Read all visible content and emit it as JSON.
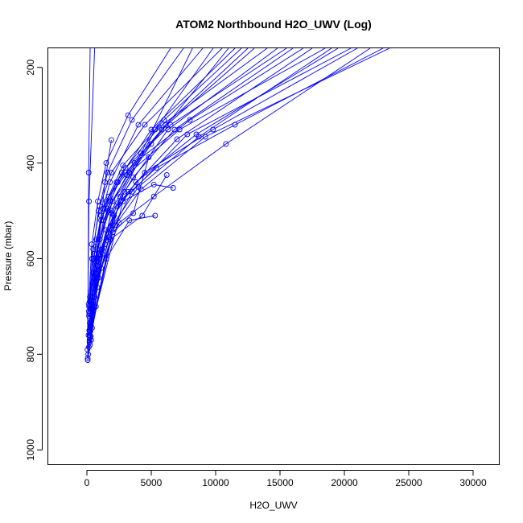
{
  "chart_data": {
    "type": "line",
    "title": "ATOM2 Northbound H2O_UWV (Log)",
    "xlabel": "H2O_UWV",
    "ylabel": "Pressure (mbar)",
    "xlim": [
      -3000,
      32000
    ],
    "ylim": [
      1030,
      160
    ],
    "y_reversed": true,
    "x_ticks": [
      0,
      5000,
      10000,
      15000,
      20000,
      25000,
      30000
    ],
    "y_ticks": [
      200,
      400,
      600,
      800,
      1000
    ],
    "grid": false,
    "legend": "none",
    "color": "#0000ff",
    "series": [
      {
        "x": [
          60,
          700,
          1800,
          2600,
          5300,
          9800
        ],
        "y": [
          812,
          700,
          560,
          470,
          330,
          160
        ]
      },
      {
        "x": [
          100,
          500,
          1200,
          1900,
          4200,
          8200
        ],
        "y": [
          800,
          690,
          590,
          500,
          380,
          160
        ]
      },
      {
        "x": [
          150,
          600,
          1400,
          2900,
          6300,
          14800
        ],
        "y": [
          785,
          680,
          570,
          460,
          330,
          160
        ]
      },
      {
        "x": [
          120,
          450,
          1000,
          2000,
          5000,
          11000
        ],
        "y": [
          760,
          650,
          560,
          480,
          360,
          160
        ]
      },
      {
        "x": [
          200,
          800,
          1700,
          3500,
          7800,
          20500
        ],
        "y": [
          775,
          660,
          555,
          460,
          340,
          160
        ]
      },
      {
        "x": [
          250,
          900,
          2200,
          4200,
          9200,
          23500
        ],
        "y": [
          765,
          640,
          530,
          455,
          345,
          160
        ]
      },
      {
        "x": [
          180,
          700,
          1500,
          3200,
          7000,
          17500
        ],
        "y": [
          750,
          630,
          540,
          460,
          350,
          160
        ]
      },
      {
        "x": [
          300,
          1100,
          2500,
          5200,
          10800,
          22000
        ],
        "y": [
          740,
          620,
          525,
          470,
          360,
          160
        ]
      },
      {
        "x": [
          220,
          600,
          1300,
          2400,
          5800,
          13000
        ],
        "y": [
          735,
          610,
          520,
          440,
          330,
          160
        ]
      },
      {
        "x": [
          160,
          520,
          1100,
          1800,
          4000,
          9000
        ],
        "y": [
          720,
          600,
          510,
          440,
          320,
          160
        ]
      },
      {
        "x": [
          350,
          1000,
          2100,
          3800,
          8500,
          19500
        ],
        "y": [
          730,
          600,
          510,
          440,
          340,
          160
        ]
      },
      {
        "x": [
          280,
          850,
          1900,
          3600,
          6800,
          16000
        ],
        "y": [
          745,
          615,
          505,
          430,
          330,
          160
        ]
      },
      {
        "x": [
          150,
          400,
          900,
          1600,
          3500,
          7500
        ],
        "y": [
          710,
          600,
          500,
          420,
          310,
          160
        ]
      },
      {
        "x": [
          240,
          780,
          1650,
          3100,
          6100,
          12500
        ],
        "y": [
          725,
          605,
          500,
          425,
          320,
          160
        ]
      },
      {
        "x": [
          320,
          950,
          2300,
          4500,
          9800,
          21000
        ],
        "y": [
          735,
          590,
          490,
          420,
          330,
          160
        ]
      },
      {
        "x": [
          190,
          560,
          1250,
          2700,
          5600,
          14000
        ],
        "y": [
          715,
          590,
          495,
          420,
          325,
          160
        ]
      },
      {
        "x": [
          260,
          800,
          1800,
          3000,
          6500,
          15500
        ],
        "y": [
          705,
          580,
          480,
          410,
          320,
          160
        ]
      },
      {
        "x": [
          170,
          480,
          1000,
          1900,
          4500,
          10500
        ],
        "y": [
          700,
          580,
          490,
          420,
          320,
          160
        ]
      },
      {
        "x": [
          210,
          650,
          1500,
          2800,
          6000,
          12000
        ],
        "y": [
          690,
          575,
          480,
          405,
          310,
          160
        ]
      },
      {
        "x": [
          380,
          1200,
          2600,
          5400,
          11500,
          23000
        ],
        "y": [
          720,
          580,
          480,
          410,
          320,
          160
        ]
      },
      {
        "x": [
          140,
          380,
          850,
          1500,
          3200,
          6500
        ],
        "y": [
          695,
          570,
          480,
          400,
          300,
          160
        ]
      },
      {
        "x": [
          300,
          700,
          1600,
          3300,
          7200,
          18500
        ],
        "y": [
          740,
          600,
          495,
          420,
          330,
          160
        ]
      },
      {
        "x": [
          200,
          500,
          1100,
          2300,
          5000,
          11500
        ],
        "y": [
          760,
          630,
          520,
          440,
          330,
          160
        ]
      },
      {
        "x": [
          230,
          720,
          1700,
          3700,
          8000,
          16800
        ],
        "y": [
          680,
          560,
          470,
          400,
          310,
          160
        ]
      },
      {
        "x": [
          330,
          900,
          2000,
          4000,
          8700,
          19000
        ],
        "y": [
          770,
          640,
          530,
          450,
          345,
          160
        ]
      },
      {
        "x": [
          60,
          140,
          250
        ],
        "y": [
          808,
          420,
          160
        ]
      },
      {
        "x": [
          40,
          160,
          600
        ],
        "y": [
          790,
          480,
          160
        ]
      },
      {
        "x": [
          250,
          800,
          1400,
          1900
        ],
        "y": [
          780,
          600,
          440,
          352
        ]
      },
      {
        "x": [
          270,
          2800,
          5200,
          6700
        ],
        "y": [
          752,
          480,
          445,
          452
        ]
      },
      {
        "x": [
          300,
          1800,
          4300,
          6200
        ],
        "y": [
          762,
          560,
          510,
          425
        ]
      },
      {
        "x": [
          200,
          1500,
          3300,
          5300
        ],
        "y": [
          770,
          600,
          520,
          510
        ]
      },
      {
        "x": [
          400,
          2000,
          3600,
          4800
        ],
        "y": [
          745,
          545,
          505,
          388
        ]
      }
    ]
  }
}
